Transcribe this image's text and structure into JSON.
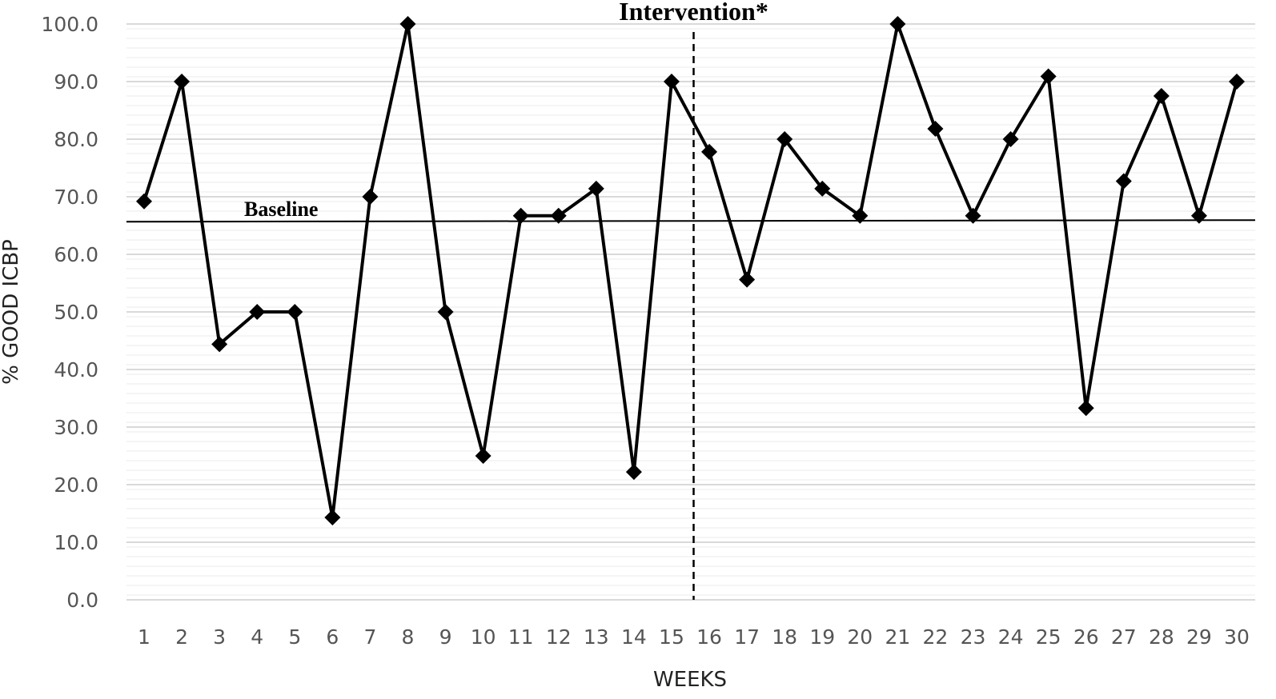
{
  "chart_data": {
    "type": "line",
    "title": "",
    "xlabel": "WEEKS",
    "ylabel": "% GOOD ICBP",
    "ylim": [
      0,
      100
    ],
    "yticks": [
      "0.0",
      "10.0",
      "20.0",
      "30.0",
      "40.0",
      "50.0",
      "60.0",
      "70.0",
      "80.0",
      "90.0",
      "100.0"
    ],
    "x": [
      1,
      2,
      3,
      4,
      5,
      6,
      7,
      8,
      9,
      10,
      11,
      12,
      13,
      14,
      15,
      16,
      17,
      18,
      19,
      20,
      21,
      22,
      23,
      24,
      25,
      26,
      27,
      28,
      29,
      30
    ],
    "series": [
      {
        "values": [
          69.2,
          90.0,
          44.4,
          50.0,
          50.0,
          14.3,
          70.0,
          100.0,
          50.0,
          25.0,
          66.7,
          66.7,
          71.4,
          22.2,
          90.0,
          77.8,
          55.6,
          80.0,
          71.4,
          66.7,
          100.0,
          81.8,
          66.7,
          80.0,
          90.9,
          33.3,
          72.7,
          87.5,
          66.7,
          90.0
        ],
        "marker": "diamond",
        "color": "#000000"
      }
    ],
    "baseline": {
      "label": "Baseline",
      "value": 65.8
    },
    "intervention": {
      "label": "Intervention*",
      "after_week": 15.5
    },
    "grid": true,
    "legend": "none",
    "colors": {
      "line": "#000000",
      "grid": "#d9d9d9",
      "hatch": "#ebebeb"
    }
  }
}
